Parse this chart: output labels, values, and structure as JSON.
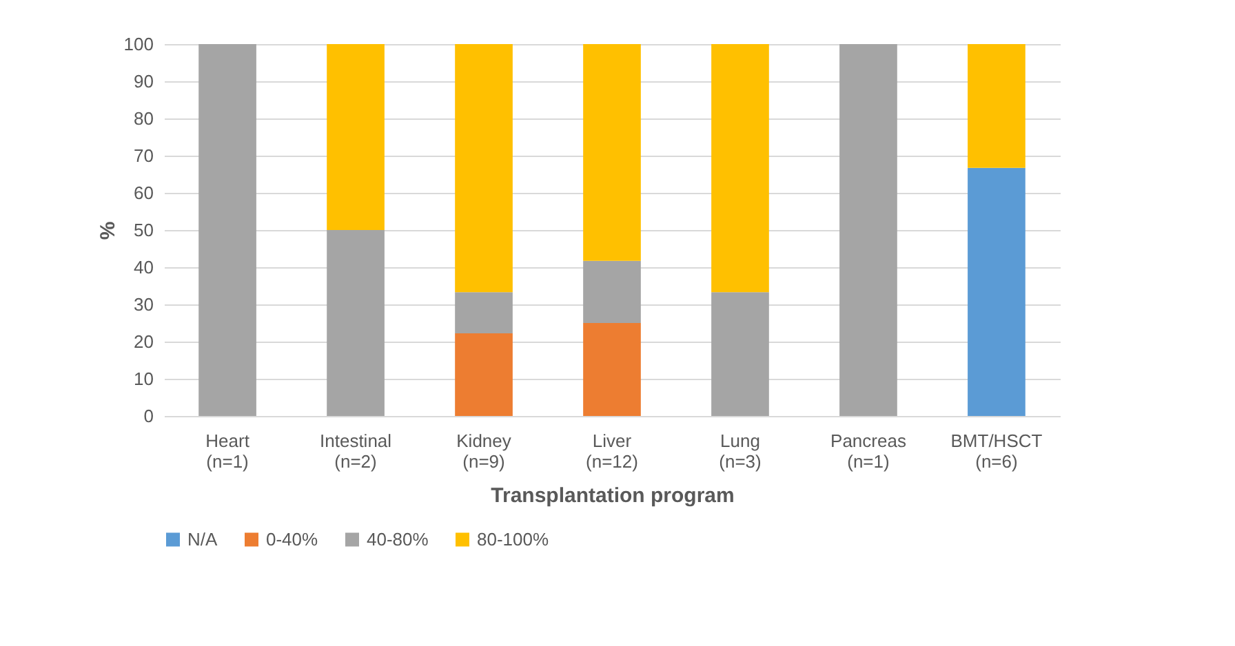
{
  "chart_data": {
    "type": "bar",
    "stacked": true,
    "xlabel": "Transplantation program",
    "ylabel": "%",
    "categories": [
      "Heart\n(n=1)",
      "Intestinal\n(n=2)",
      "Kidney\n(n=9)",
      "Liver\n(n=12)",
      "Lung\n(n=3)",
      "Pancreas\n(n=1)",
      "BMT/HSCT\n(n=6)"
    ],
    "series": [
      {
        "name": "N/A",
        "color": "#5b9bd5",
        "values": [
          null,
          null,
          null,
          null,
          null,
          null,
          66.7
        ]
      },
      {
        "name": "0-40%",
        "color": "#ed7d31",
        "values": [
          null,
          null,
          22.2,
          25,
          null,
          null,
          null
        ]
      },
      {
        "name": "40-80%",
        "color": "#a5a5a5",
        "values": [
          100,
          50,
          11.1,
          16.7,
          33.3,
          100,
          null
        ]
      },
      {
        "name": "80-100%",
        "color": "#ffc000",
        "values": [
          null,
          50,
          66.7,
          58.3,
          66.7,
          null,
          33.3
        ]
      }
    ],
    "ylim": [
      0,
      100
    ],
    "yticks": [
      0,
      10,
      20,
      30,
      40,
      50,
      60,
      70,
      80,
      90,
      100
    ],
    "grid": "y",
    "legend": "bottom"
  }
}
